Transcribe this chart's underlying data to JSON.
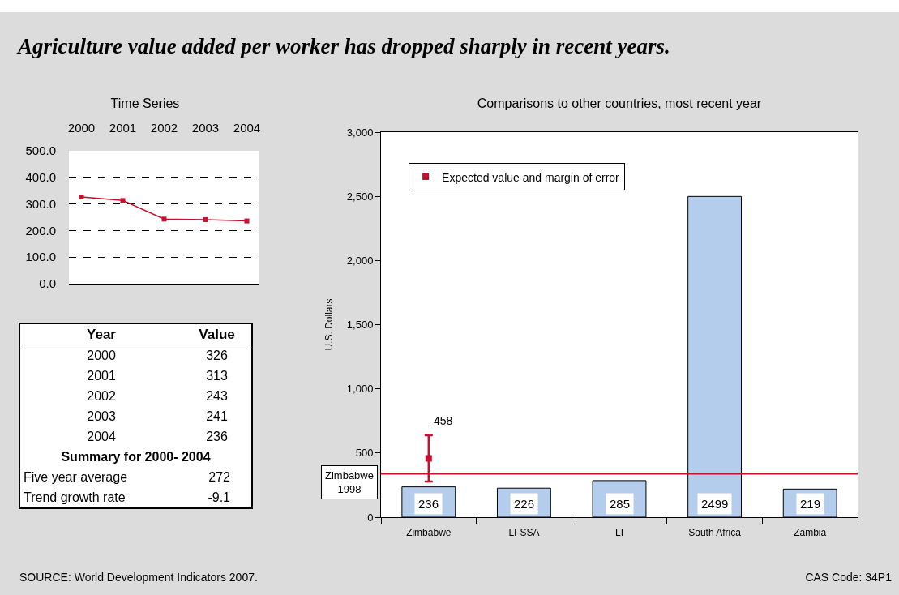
{
  "chart_data": [
    {
      "type": "line",
      "title": "Time Series",
      "categories": [
        "2000",
        "2001",
        "2002",
        "2003",
        "2004"
      ],
      "values": [
        326,
        313,
        243,
        241,
        236
      ],
      "color": "#c8102e",
      "ylim": [
        0,
        500
      ],
      "yticks": [
        {
          "value": 0,
          "label": "0.0"
        },
        {
          "value": 100,
          "label": "100.0"
        },
        {
          "value": 200,
          "label": "200.0"
        },
        {
          "value": 300,
          "label": "300.0"
        },
        {
          "value": 400,
          "label": "400.0"
        },
        {
          "value": 500,
          "label": "500.0"
        }
      ],
      "grid": "y",
      "marker": "square",
      "annotations": [
        "Year",
        "Value",
        "326",
        "313",
        "243",
        "241",
        "236",
        "Summary for 2000- 2004",
        "Five year average",
        "272",
        "Trend growth rate",
        "-9.1"
      ]
    },
    {
      "type": "bar",
      "title": "Comparisons to other countries, most recent year",
      "ylabel": "U.S. Dollars",
      "categories": [
        "Zimbabwe",
        "LI-SSA",
        "LI",
        "South Africa",
        "Zambia"
      ],
      "series": [
        {
          "type": "bar",
          "color": "#b4cdec",
          "values": [
            236,
            226,
            285,
            2499,
            219
          ]
        },
        {
          "type": "scatter",
          "name": "Expected value and margin of error",
          "color": "#c8102e",
          "x": [
            "Zimbabwe"
          ],
          "values": [
            458
          ],
          "errors": [
            180
          ]
        }
      ],
      "ylim": [
        0,
        3000
      ],
      "yticks": [
        0,
        500,
        {
          "value": 1000,
          "label": "1,000"
        },
        {
          "value": 1500,
          "label": "1,500"
        },
        {
          "value": 2000,
          "label": "2,000"
        },
        {
          "value": 2500,
          "label": "2,500"
        },
        {
          "value": 3000,
          "label": "3,000"
        }
      ],
      "ref_lines": [
        {
          "axis": "y",
          "value": 340,
          "label": "Zimbabwe\n1998",
          "color": "#c8102e"
        }
      ],
      "legend": "top left",
      "marker": "square",
      "data_labels": true,
      "annotations": [
        "Agriculture value added per worker has dropped sharply in recent years.",
        "SOURCE: World Development Indicators 2007.",
        "CAS Code: 34P1"
      ]
    }
  ]
}
